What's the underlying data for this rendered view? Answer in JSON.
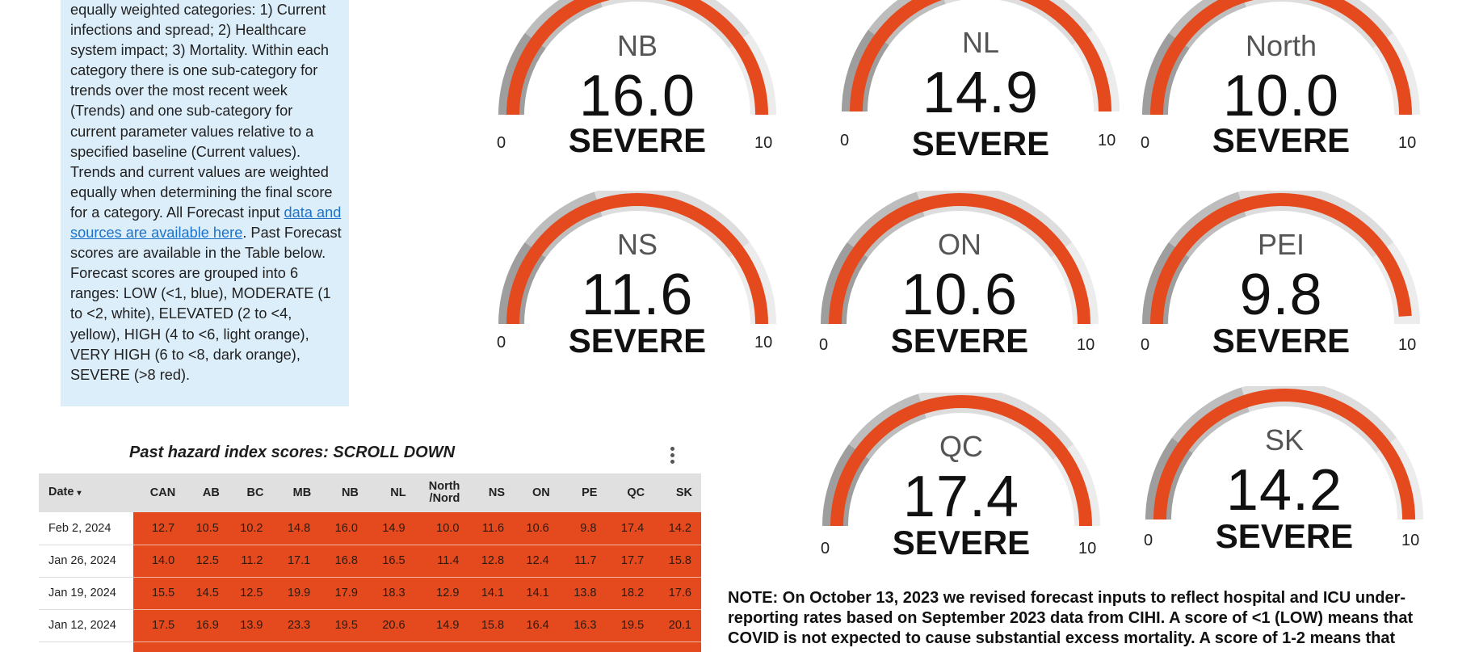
{
  "description": {
    "part1": "equally weighted categories: 1) Current infections and spread; 2) Healthcare system impact; 3) Mortality. Within each category there is one sub-category for trends over the most recent week (Trends) and one sub-category for current parameter values relative to a specified baseline (Current values). Trends and current values are weighted equally when determining the final score for a category. All Forecast input ",
    "link": "data and sources are available here",
    "part2": ". Past Forecast scores are available in the Table below. Forecast scores are grouped into 6 ranges: LOW (<1, blue), MODERATE (1 to <2, white), ELEVATED (2 to <4, yellow), HIGH (4 to <6, light orange), VERY HIGH (6 to <8, dark orange), SEVERE (>8 red)."
  },
  "table": {
    "title": "Past hazard index scores: SCROLL DOWN",
    "menu_icon": "more-vert-icon",
    "headers": [
      "Date",
      "CAN",
      "AB",
      "BC",
      "MB",
      "NB",
      "NL",
      "North /Nord",
      "NS",
      "ON",
      "PE",
      "QC",
      "SK"
    ],
    "sort_indicator": "▾",
    "rows": [
      [
        "Feb 2, 2024",
        "12.7",
        "10.5",
        "10.2",
        "14.8",
        "16.0",
        "14.9",
        "10.0",
        "11.6",
        "10.6",
        "9.8",
        "17.4",
        "14.2"
      ],
      [
        "Jan 26, 2024",
        "14.0",
        "12.5",
        "11.2",
        "17.1",
        "16.8",
        "16.5",
        "11.4",
        "12.8",
        "12.4",
        "11.7",
        "17.7",
        "15.8"
      ],
      [
        "Jan 19, 2024",
        "15.5",
        "14.5",
        "12.5",
        "19.9",
        "17.9",
        "18.3",
        "12.9",
        "14.1",
        "14.1",
        "13.8",
        "18.2",
        "17.6"
      ],
      [
        "Jan 12, 2024",
        "17.5",
        "16.9",
        "13.9",
        "23.3",
        "19.5",
        "20.6",
        "14.9",
        "15.8",
        "16.4",
        "16.3",
        "19.5",
        "20.1"
      ],
      [
        "",
        "",
        "",
        "",
        "",
        "",
        "",
        "",
        "",
        "",
        "",
        "",
        ""
      ]
    ]
  },
  "gauges": [
    {
      "region": "NB",
      "value": "16.0",
      "level": "SEVERE",
      "min": "0",
      "max": "10",
      "fill": 1.0
    },
    {
      "region": "NL",
      "value": "14.9",
      "level": "SEVERE",
      "min": "0",
      "max": "10",
      "fill": 1.0
    },
    {
      "region": "North",
      "value": "10.0",
      "level": "SEVERE",
      "min": "0",
      "max": "10",
      "fill": 1.0
    },
    {
      "region": "NS",
      "value": "11.6",
      "level": "SEVERE",
      "min": "0",
      "max": "10",
      "fill": 1.0
    },
    {
      "region": "ON",
      "value": "10.6",
      "level": "SEVERE",
      "min": "0",
      "max": "10",
      "fill": 1.0
    },
    {
      "region": "PEI",
      "value": "9.8",
      "level": "SEVERE",
      "min": "0",
      "max": "10",
      "fill": 0.98
    },
    {
      "region": "QC",
      "value": "17.4",
      "level": "SEVERE",
      "min": "0",
      "max": "10",
      "fill": 1.0
    },
    {
      "region": "SK",
      "value": "14.2",
      "level": "SEVERE",
      "min": "0",
      "max": "10",
      "fill": 1.0
    }
  ],
  "colors": {
    "severe": "#e54a1e",
    "band_dark": "#9e9e9e",
    "band_mid": "#bdbdbd",
    "band_light": "#dddddd",
    "band_lightest": "#ececec",
    "panel_bg": "#ddeefb",
    "link": "#1c73c9"
  },
  "note": "NOTE: On October 13, 2023 we revised forecast inputs to reflect hospital and ICU under-reporting rates based on September 2023 data from CIHI. A score of <1 (LOW) means that COVID is not expected to cause substantial excess mortality. A score of 1-2 means that"
}
